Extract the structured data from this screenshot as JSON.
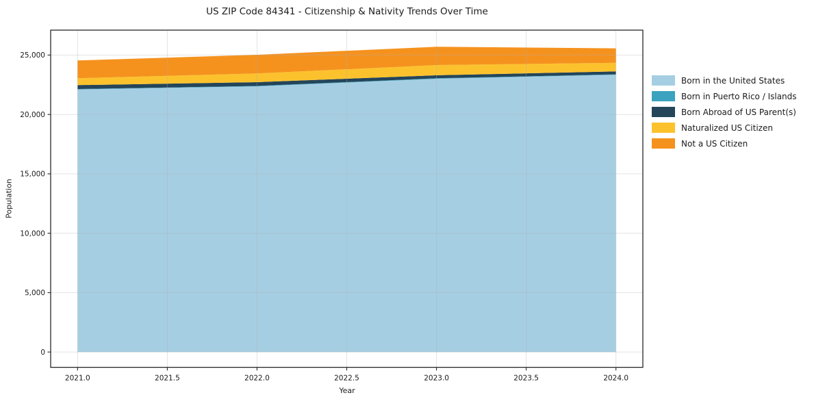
{
  "title": "US ZIP Code 84341 - Citizenship & Nativity Trends Over Time",
  "chart_data": {
    "type": "area",
    "stacked": true,
    "title": "US ZIP Code 84341 - Citizenship & Nativity Trends Over Time",
    "xlabel": "Year",
    "ylabel": "Population",
    "x": [
      2021,
      2022,
      2023,
      2024
    ],
    "series": [
      {
        "name": "Born in the United States",
        "color": "#A6CEE3",
        "values": [
          22110,
          22370,
          23010,
          23340
        ]
      },
      {
        "name": "Born in Puerto Rico / Islands",
        "color": "#3BA3BF",
        "values": [
          30,
          30,
          35,
          35
        ]
      },
      {
        "name": "Born Abroad of US Parent(s)",
        "color": "#24455A",
        "values": [
          330,
          320,
          255,
          250
        ]
      },
      {
        "name": "Naturalized US Citizen",
        "color": "#FCC22D",
        "values": [
          575,
          730,
          860,
          720
        ]
      },
      {
        "name": "Not a US Citizen",
        "color": "#F5921E",
        "values": [
          1500,
          1575,
          1540,
          1220
        ]
      }
    ],
    "totals": [
      24545,
      25025,
      25700,
      25565
    ],
    "xlim": [
      2020.85,
      2024.15
    ],
    "ylim": [
      -1290,
      27100
    ],
    "x_ticks": {
      "values": [
        2021.0,
        2021.5,
        2022.0,
        2022.5,
        2023.0,
        2023.5,
        2024.0
      ],
      "labels": [
        "2021.0",
        "2021.5",
        "2022.0",
        "2022.5",
        "2023.0",
        "2023.5",
        "2024.0"
      ]
    },
    "y_ticks": {
      "values": [
        0,
        5000,
        10000,
        15000,
        20000,
        25000
      ],
      "labels": [
        "0",
        "5,000",
        "10,000",
        "15,000",
        "20,000",
        "25,000"
      ]
    },
    "grid": true,
    "legend_position": "right-outside"
  },
  "colors": {
    "background": "#ffffff",
    "grid": "#B0B0B0",
    "spine": "#262626",
    "tick_text": "#1a1a1a"
  }
}
